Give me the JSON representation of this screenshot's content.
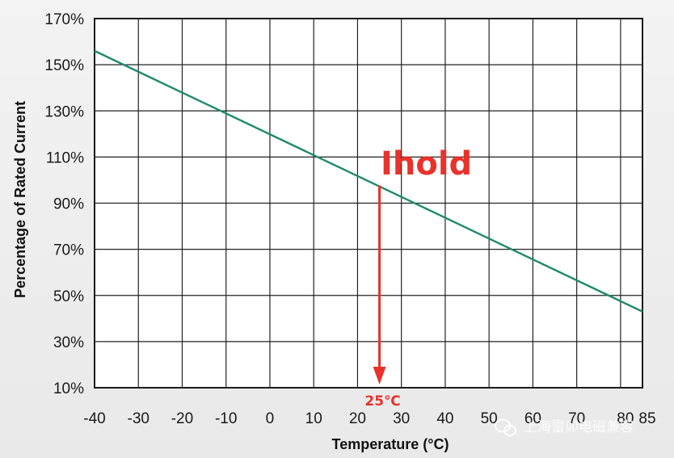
{
  "chart_data": {
    "type": "line",
    "title": "",
    "xlabel": "Temperature (°C)",
    "ylabel": "Percentage of Rated Current",
    "xlim": [
      -40,
      85
    ],
    "ylim": [
      10,
      170
    ],
    "x_ticks": [
      -40,
      -30,
      -20,
      -10,
      0,
      10,
      20,
      30,
      40,
      50,
      60,
      70,
      80,
      85
    ],
    "x_tick_labels": [
      "-40",
      "-30",
      "-20",
      "-10",
      "0",
      "10",
      "20",
      "30",
      "40",
      "50",
      "60",
      "70",
      "80",
      "85"
    ],
    "y_ticks": [
      10,
      30,
      50,
      70,
      90,
      110,
      130,
      150,
      170
    ],
    "y_tick_labels": [
      "10%",
      "30%",
      "50%",
      "70%",
      "90%",
      "110%",
      "130%",
      "150%",
      "170%"
    ],
    "grid": true,
    "series": [
      {
        "values_x": [
          -40,
          85
        ],
        "values_y": [
          156,
          43
        ],
        "color": "#1e8a6e"
      }
    ],
    "annotations": [
      {
        "text": "Ihold",
        "x": 25,
        "y": 97,
        "color": "#e8322a"
      },
      {
        "text": "25℃",
        "x": 25,
        "y": 10,
        "color": "#e8322a"
      }
    ]
  },
  "watermark": {
    "text": "上海雷卯电磁兼容",
    "icon": "wechat-icon"
  }
}
